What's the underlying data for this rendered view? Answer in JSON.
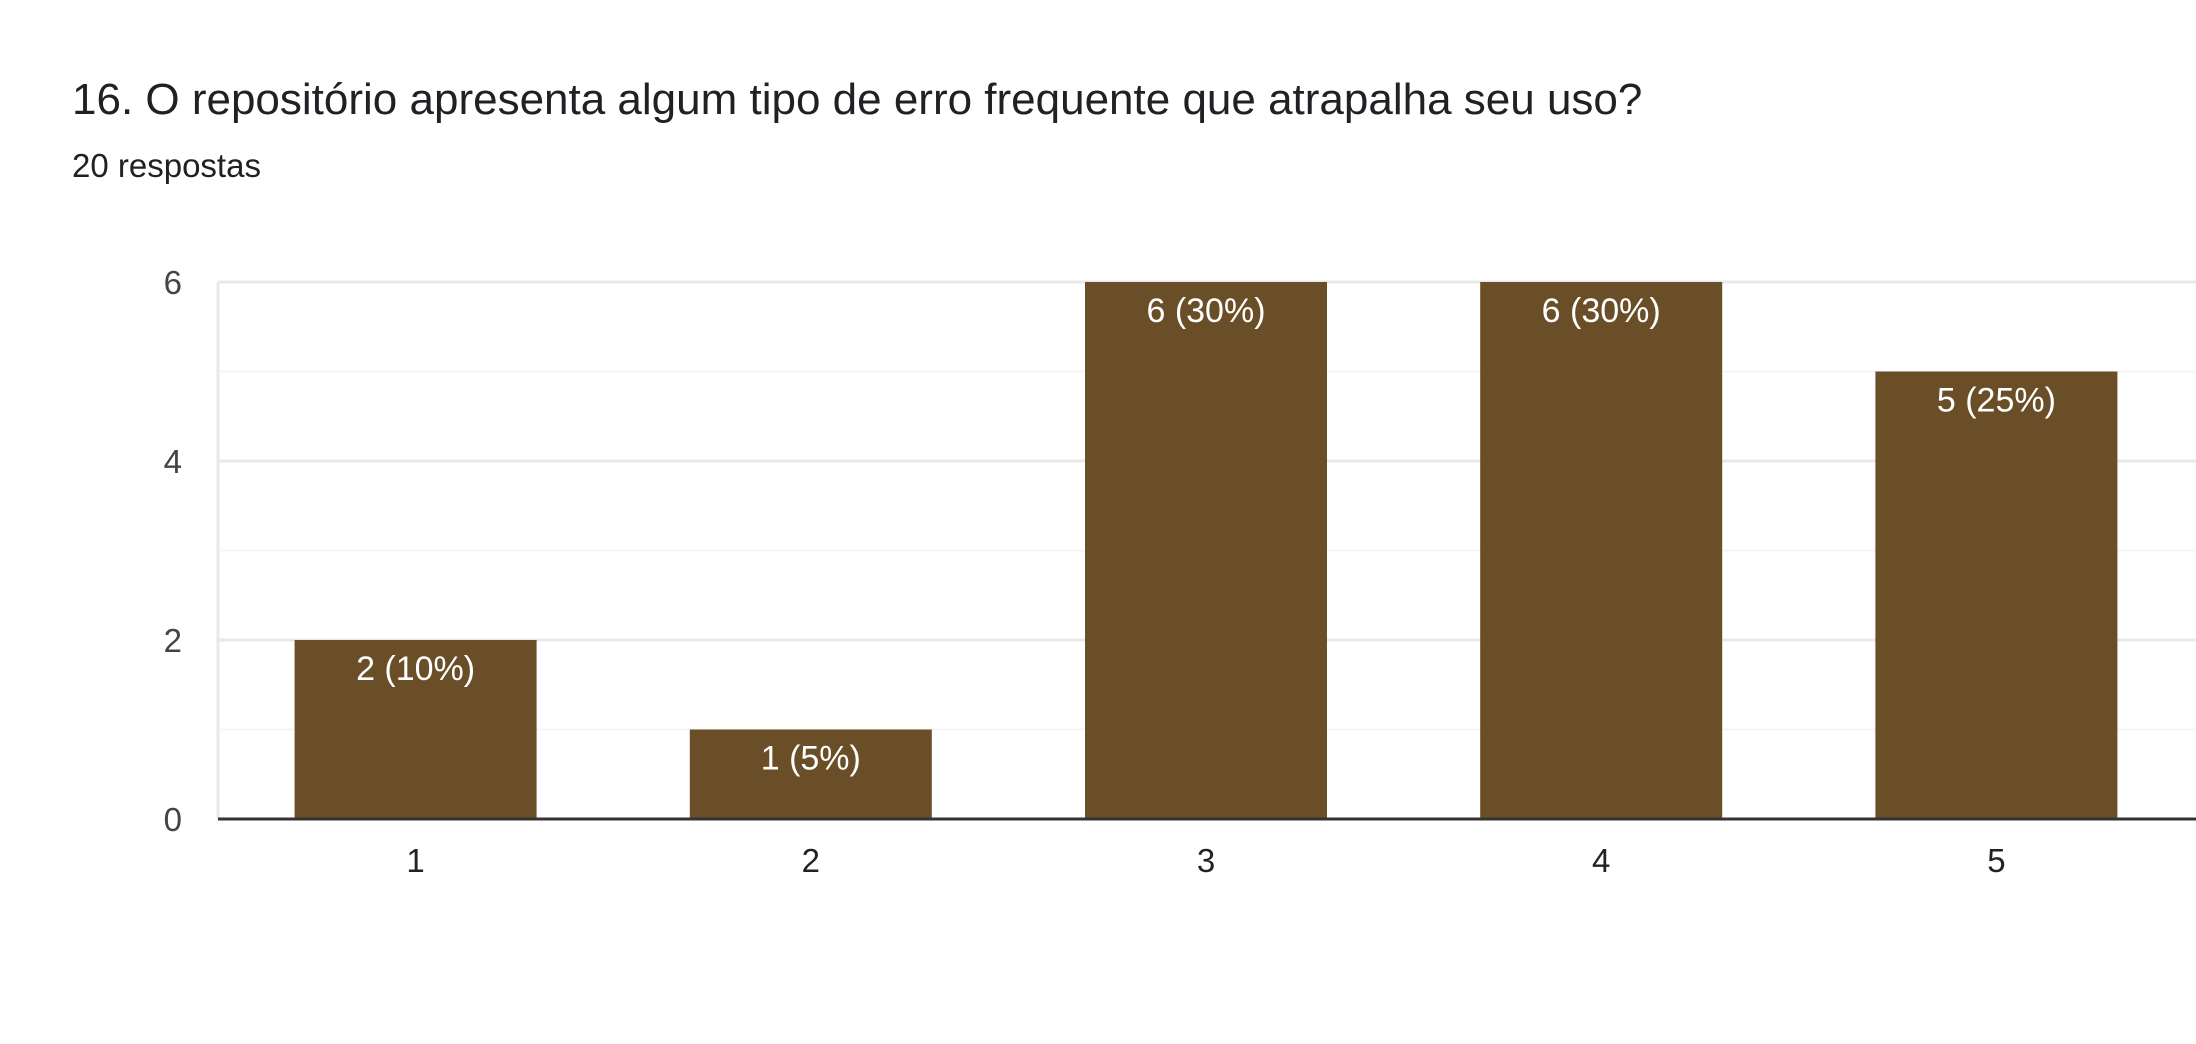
{
  "question": {
    "title": "16. O repositório apresenta algum tipo de erro frequente que atrapalha seu uso?",
    "responses": "20 respostas"
  },
  "colors": {
    "bar": "#6a4e27",
    "grid_major": "#e8e8e8",
    "grid_minor": "#f4f4f4",
    "axis": "#333333"
  },
  "chart_data": {
    "type": "bar",
    "categories": [
      "1",
      "2",
      "3",
      "4",
      "5"
    ],
    "values": [
      2,
      1,
      6,
      6,
      5
    ],
    "data_labels": [
      "2 (10%)",
      "1 (5%)",
      "6 (30%)",
      "6 (30%)",
      "5 (25%)"
    ],
    "y_ticks": [
      "0",
      "2",
      "4",
      "6"
    ],
    "ylim": [
      0,
      6
    ],
    "grid": true,
    "legend": "none",
    "title": "",
    "xlabel": "",
    "ylabel": ""
  }
}
